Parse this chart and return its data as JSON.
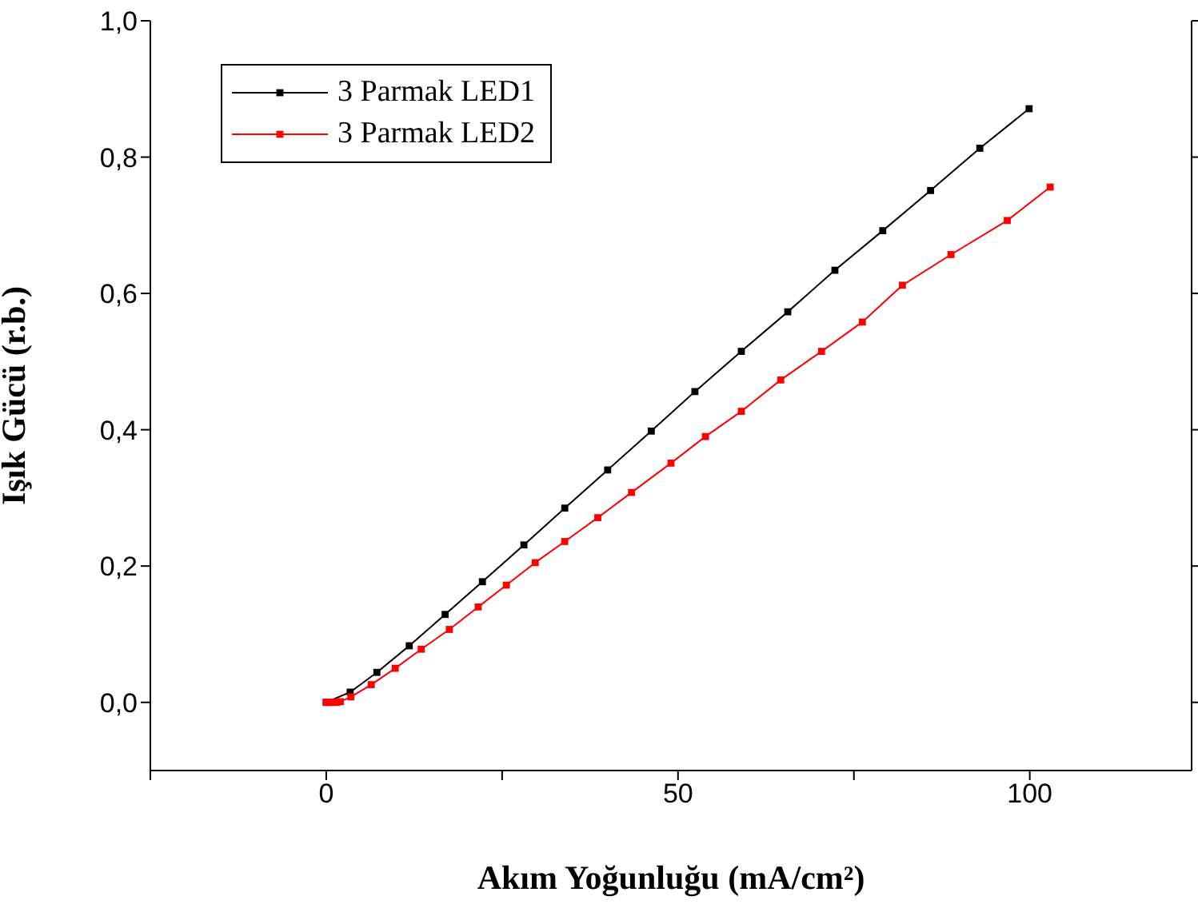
{
  "chart_data": {
    "type": "line",
    "xlabel": "Akım Yoğunluğu (mA/cm²)",
    "ylabel": "Işık Gücü (r.b.)",
    "xlim": [
      -25,
      123
    ],
    "xticks": [
      {
        "value": -25,
        "label": null
      },
      0,
      {
        "value": 25,
        "label": null
      },
      50,
      {
        "value": 75,
        "label": null
      },
      100
    ],
    "ylim": [
      -0.1,
      1.0
    ],
    "yticks": [
      {
        "value": 0,
        "label": "0,0"
      },
      {
        "value": 0.2,
        "label": "0,2"
      },
      {
        "value": 0.4,
        "label": "0,4"
      },
      {
        "value": 0.6,
        "label": "0,6"
      },
      {
        "value": 0.8,
        "label": "0,8"
      },
      {
        "value": 1.0,
        "label": "1,0"
      }
    ],
    "grid": false,
    "legend": "top left",
    "marker": "square",
    "line_style": "solid",
    "series": [
      {
        "name": "3 Parmak LED1",
        "color": "#000000",
        "x": [
          0,
          3.4,
          7.2,
          11.8,
          16.9,
          22.2,
          28.1,
          33.9,
          40.0,
          46.2,
          52.4,
          59.0,
          65.6,
          72.3,
          79.1,
          85.9,
          92.9,
          99.9
        ],
        "values": [
          0,
          0.015,
          0.044,
          0.083,
          0.129,
          0.177,
          0.231,
          0.285,
          0.341,
          0.398,
          0.456,
          0.515,
          0.573,
          0.634,
          0.692,
          0.751,
          0.813,
          0.871
        ]
      },
      {
        "name": "3 Parmak LED2",
        "color": "#ff0000",
        "x": [
          0,
          0.5,
          1.0,
          1.5,
          2.0,
          3.5,
          6.4,
          9.8,
          13.5,
          17.5,
          21.6,
          25.6,
          29.7,
          33.9,
          38.6,
          43.4,
          49.0,
          53.9,
          59.0,
          64.6,
          70.4,
          76.2,
          81.9,
          88.8,
          96.8,
          102.9
        ],
        "values": [
          0,
          0,
          0,
          0,
          0.001,
          0.008,
          0.026,
          0.05,
          0.078,
          0.107,
          0.14,
          0.172,
          0.205,
          0.236,
          0.271,
          0.308,
          0.351,
          0.39,
          0.427,
          0.473,
          0.515,
          0.558,
          0.612,
          0.657,
          0.707,
          0.756
        ]
      }
    ]
  }
}
